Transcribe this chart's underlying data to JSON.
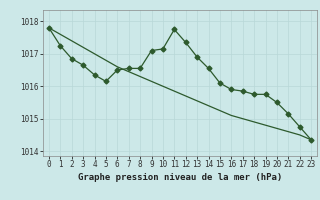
{
  "title": "Graphe pression niveau de la mer (hPa)",
  "bg_color": "#cce8e8",
  "grid_color": "#b8d8d8",
  "line_color": "#2d5a2d",
  "x": [
    0,
    1,
    2,
    3,
    4,
    5,
    6,
    7,
    8,
    9,
    10,
    11,
    12,
    13,
    14,
    15,
    16,
    17,
    18,
    19,
    20,
    21,
    22,
    23
  ],
  "y_zigzag": [
    1017.8,
    1017.25,
    1016.85,
    1016.65,
    1016.35,
    1016.15,
    1016.5,
    1016.55,
    1016.55,
    1017.1,
    1017.15,
    1017.75,
    1017.35,
    1016.9,
    1016.55,
    1016.1,
    1015.9,
    1015.85,
    1015.75,
    1015.75,
    1015.5,
    1015.15,
    1014.75,
    1014.35
  ],
  "y_trend": [
    1017.8,
    1017.6,
    1017.4,
    1017.2,
    1017.0,
    1016.8,
    1016.6,
    1016.45,
    1016.3,
    1016.15,
    1016.0,
    1015.85,
    1015.7,
    1015.55,
    1015.4,
    1015.25,
    1015.1,
    1015.0,
    1014.9,
    1014.8,
    1014.7,
    1014.6,
    1014.5,
    1014.35
  ],
  "ylim_min": 1013.85,
  "ylim_max": 1018.35,
  "yticks": [
    1014,
    1015,
    1016,
    1017,
    1018
  ],
  "xtick_labels": [
    "0",
    "1",
    "2",
    "3",
    "4",
    "5",
    "6",
    "7",
    "8",
    "9",
    "10",
    "11",
    "12",
    "13",
    "14",
    "15",
    "16",
    "17",
    "18",
    "19",
    "20",
    "21",
    "22",
    "23"
  ],
  "tick_fontsize": 5.5,
  "title_fontsize": 6.5,
  "marker_size": 2.5,
  "lw": 0.9
}
